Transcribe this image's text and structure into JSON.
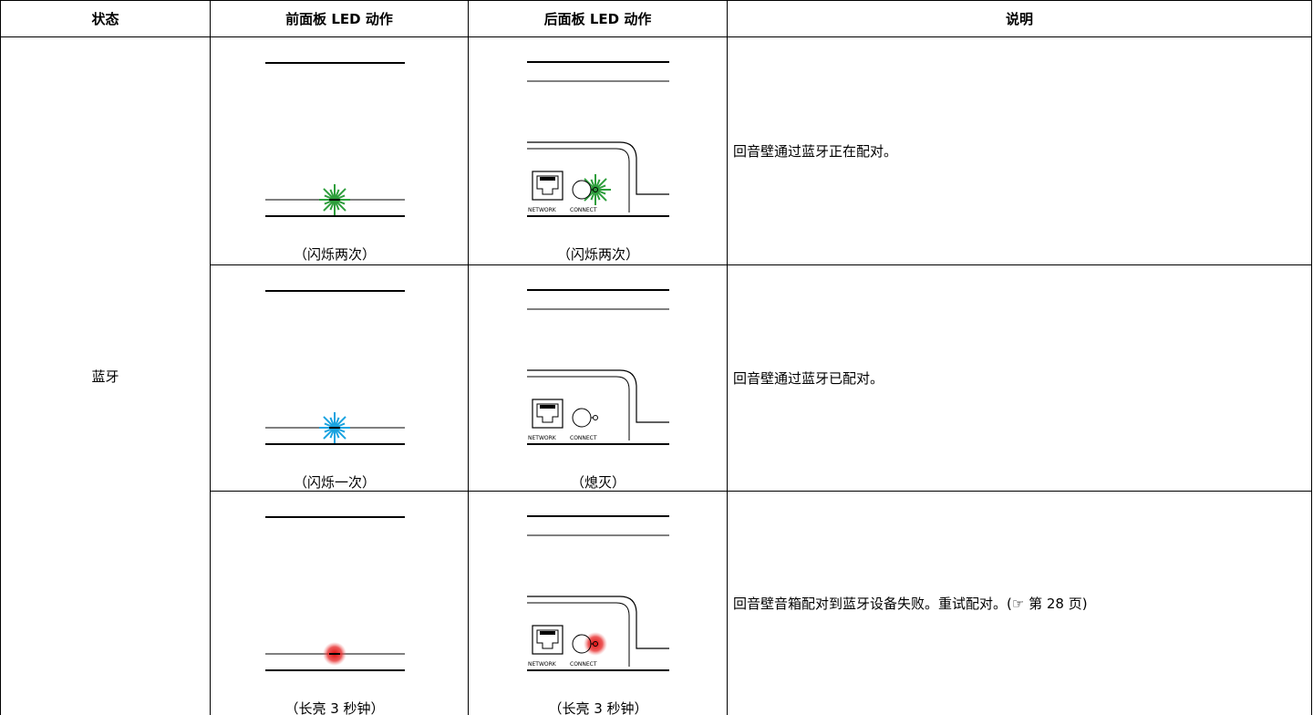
{
  "table": {
    "header": [
      "状态",
      "前面板 LED 动作",
      "后面板 LED 动作",
      "说明"
    ],
    "state": "蓝牙",
    "rows": [
      {
        "front": "（闪烁两次）",
        "back": "（闪烁两次）",
        "description": "回音壁通过蓝牙正在配对。"
      },
      {
        "front": "（闪烁一次）",
        "back": "（熄灭）",
        "description": "回音壁通过蓝牙已配对。"
      },
      {
        "front": "（长亮 3 秒钟）",
        "back": "（长亮 3 秒钟）",
        "description": "回音壁音箱配对到蓝牙设备失败。重试配对。(☞ 第 28 页)"
      }
    ],
    "back_panel_labels": [
      "NETWORK",
      "CONNECT"
    ]
  }
}
